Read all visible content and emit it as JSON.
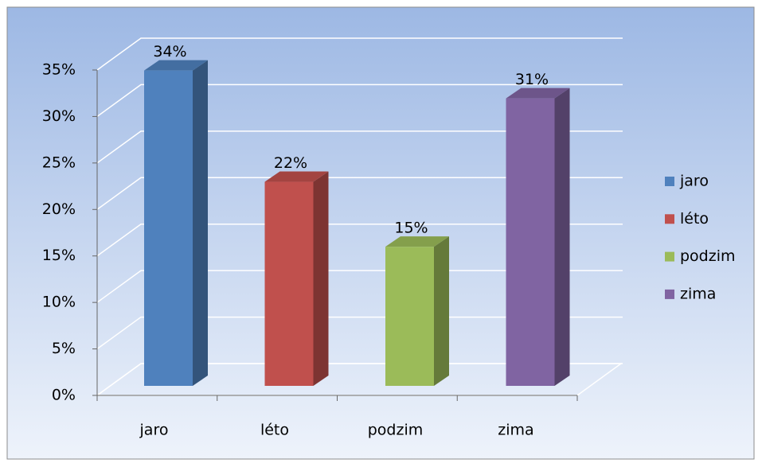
{
  "chart_data": {
    "type": "bar3d",
    "categories": [
      "jaro",
      "léto",
      "podzim",
      "zima"
    ],
    "values": [
      34,
      22,
      15,
      31
    ],
    "value_labels": [
      "34%",
      "22%",
      "15%",
      "31%"
    ],
    "colors": [
      "#4f81bd",
      "#c0504d",
      "#9bbb59",
      "#8064a2"
    ],
    "ylim": [
      0,
      35
    ],
    "yticks": [
      {
        "value": 0,
        "label": "0%"
      },
      {
        "value": 5,
        "label": "5%"
      },
      {
        "value": 10,
        "label": "10%"
      },
      {
        "value": 15,
        "label": "15%"
      },
      {
        "value": 20,
        "label": "20%"
      },
      {
        "value": 25,
        "label": "25%"
      },
      {
        "value": 30,
        "label": "30%"
      },
      {
        "value": 35,
        "label": "35%"
      }
    ],
    "grid": true,
    "legend": "right"
  }
}
